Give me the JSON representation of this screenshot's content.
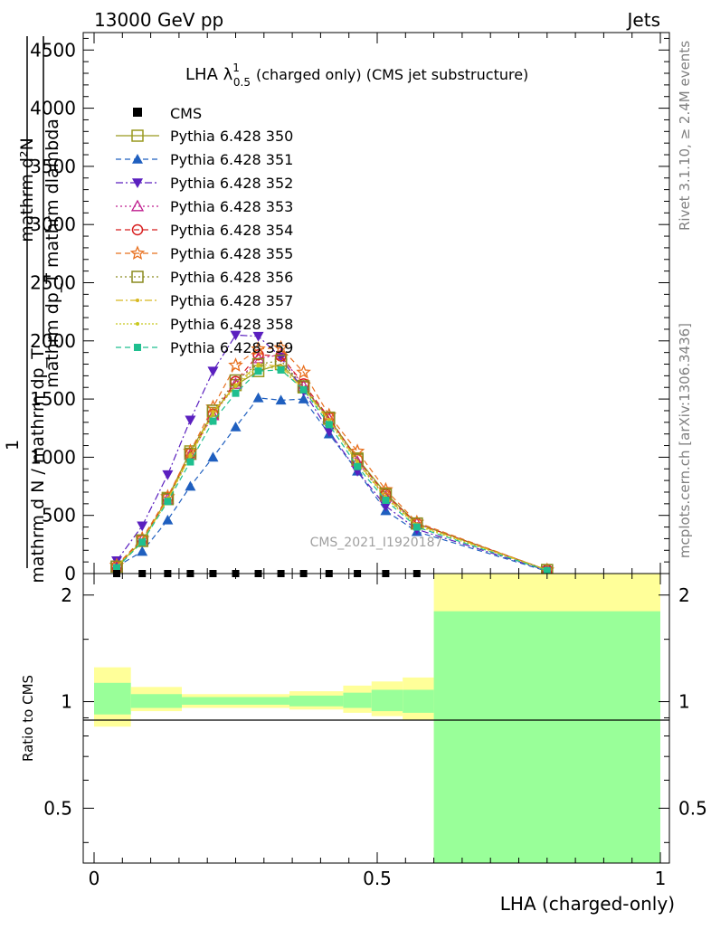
{
  "header": {
    "left": "13000 GeV pp",
    "right": "Jets"
  },
  "side_labels": {
    "rivet": "Rivet 3.1.10, ≥ 2.4M events",
    "mcplots": "mcplots.cern.ch [arXiv:1306.3436]"
  },
  "watermark": "CMS_2021_I1920187",
  "chart_data": [
    {
      "type": "line",
      "title": "LHA λ¹₀.₅ (charged only) (CMS jet substructure)",
      "title_parts": {
        "main": "LHA λ",
        "sup": "1",
        "sub": "0.5",
        "rest": "(charged only) (CMS jet substructure)"
      },
      "ylabel_parts": {
        "num_prefix": "1",
        "frac1_top": "mathrm dN",
        "frac1_bottom": "mathrm dλ",
        "top": "mathrm d",
        "top_sub": "T",
        "top2": "mathrm dp",
        "top2_sub": "T",
        "left1": "mathrm d N / mathrm d p",
        "left2": "mathrm d lambda"
      },
      "ylabel_lines": [
        "mathrm d²N",
        "mathrm dp_T mathrm dlambda",
        "1",
        "mathrm d N / mathrm dp_T"
      ],
      "xlim": [
        0,
        1
      ],
      "ylim": [
        0,
        4650
      ],
      "y_ticks": [
        0,
        500,
        1000,
        1500,
        2000,
        2500,
        3000,
        3500,
        4000,
        4500
      ],
      "legend_position": "top-left",
      "legend": [
        "CMS",
        "Pythia 6.428 350",
        "Pythia 6.428 351",
        "Pythia 6.428 352",
        "Pythia 6.428 353",
        "Pythia 6.428 354",
        "Pythia 6.428 355",
        "Pythia 6.428 356",
        "Pythia 6.428 357",
        "Pythia 6.428 358",
        "Pythia 6.428 359"
      ],
      "x": [
        0.04,
        0.085,
        0.13,
        0.17,
        0.21,
        0.25,
        0.29,
        0.33,
        0.37,
        0.415,
        0.465,
        0.515,
        0.57,
        0.8
      ],
      "cms": {
        "name": "CMS",
        "x": [
          0.04,
          0.085,
          0.13,
          0.17,
          0.21,
          0.25,
          0.29,
          0.33,
          0.37,
          0.415,
          0.465,
          0.515,
          0.57
        ],
        "values": [
          0,
          0,
          0,
          0,
          0,
          0,
          0,
          0,
          0,
          0,
          0,
          0,
          0
        ],
        "color": "#000000"
      },
      "series": [
        {
          "name": "Pythia 6.428 350",
          "color": "#99991f",
          "marker": "square-open",
          "dash": "",
          "values": [
            60,
            280,
            650,
            1050,
            1380,
            1620,
            1740,
            1800,
            1600,
            1330,
            990,
            690,
            430,
            30
          ]
        },
        {
          "name": "Pythia 6.428 351",
          "color": "#1f5fbf",
          "marker": "triangle-up",
          "dash": "6,4",
          "values": [
            60,
            190,
            460,
            750,
            1000,
            1260,
            1510,
            1490,
            1500,
            1200,
            880,
            540,
            360,
            20
          ]
        },
        {
          "name": "Pythia 6.428 352",
          "color": "#5a1fbf",
          "marker": "triangle-down",
          "dash": "8,3,2,3",
          "values": [
            110,
            410,
            850,
            1320,
            1740,
            2050,
            2040,
            1860,
            1570,
            1220,
            880,
            580,
            380,
            25
          ]
        },
        {
          "name": "Pythia 6.428 353",
          "color": "#bf1f8f",
          "marker": "triangle-open",
          "dash": "2,3",
          "values": [
            60,
            290,
            640,
            1020,
            1360,
            1630,
            1850,
            1880,
            1610,
            1330,
            960,
            660,
            430,
            30
          ]
        },
        {
          "name": "Pythia 6.428 354",
          "color": "#d81f1f",
          "marker": "circle-open",
          "dash": "6,4",
          "values": [
            60,
            290,
            650,
            1030,
            1370,
            1650,
            1880,
            1870,
            1630,
            1340,
            980,
            680,
            430,
            30
          ]
        },
        {
          "name": "Pythia 6.428 355",
          "color": "#e8701f",
          "marker": "star",
          "dash": "6,4",
          "values": [
            70,
            300,
            660,
            1050,
            1430,
            1790,
            1930,
            1940,
            1730,
            1360,
            1050,
            720,
            440,
            30
          ]
        },
        {
          "name": "Pythia 6.428 356",
          "color": "#8a8a1f",
          "marker": "square-open",
          "dash": "2,3",
          "values": [
            60,
            285,
            640,
            1030,
            1400,
            1660,
            1800,
            1830,
            1610,
            1340,
            980,
            680,
            430,
            30
          ]
        },
        {
          "name": "Pythia 6.428 357",
          "color": "#d8b81f",
          "marker": "dot",
          "dash": "8,3,2,3",
          "values": [
            60,
            280,
            640,
            1020,
            1390,
            1620,
            1800,
            1780,
            1590,
            1320,
            960,
            660,
            420,
            30
          ]
        },
        {
          "name": "Pythia 6.428 358",
          "color": "#c8c81f",
          "marker": "dot",
          "dash": "2,2",
          "values": [
            60,
            275,
            630,
            1010,
            1370,
            1610,
            1780,
            1760,
            1580,
            1310,
            950,
            650,
            410,
            30
          ]
        },
        {
          "name": "Pythia 6.428 359",
          "color": "#1fbf8f",
          "marker": "square",
          "dash": "6,4",
          "values": [
            50,
            270,
            620,
            960,
            1310,
            1550,
            1740,
            1750,
            1580,
            1280,
            920,
            630,
            400,
            25
          ]
        }
      ]
    },
    {
      "type": "area",
      "ylabel": "Ratio to CMS",
      "xlabel": "LHA (charged-only)",
      "xlim": [
        0,
        1
      ],
      "ylim": [
        0.35,
        2.3
      ],
      "y_scale": "log",
      "y_ticks": [
        0.5,
        1,
        2
      ],
      "x_ticks": [
        0,
        0.5,
        1
      ],
      "bins": [
        {
          "x0": 0.0,
          "x1": 0.065,
          "stat_lo": 0.92,
          "stat_hi": 1.13,
          "tot_lo": 0.85,
          "tot_hi": 1.25
        },
        {
          "x0": 0.065,
          "x1": 0.155,
          "stat_lo": 0.96,
          "stat_hi": 1.05,
          "tot_lo": 0.94,
          "tot_hi": 1.1
        },
        {
          "x0": 0.155,
          "x1": 0.345,
          "stat_lo": 0.98,
          "stat_hi": 1.03,
          "tot_lo": 0.96,
          "tot_hi": 1.05
        },
        {
          "x0": 0.345,
          "x1": 0.44,
          "stat_lo": 0.97,
          "stat_hi": 1.04,
          "tot_lo": 0.95,
          "tot_hi": 1.07
        },
        {
          "x0": 0.44,
          "x1": 0.49,
          "stat_lo": 0.96,
          "stat_hi": 1.06,
          "tot_lo": 0.93,
          "tot_hi": 1.11
        },
        {
          "x0": 0.49,
          "x1": 0.545,
          "stat_lo": 0.94,
          "stat_hi": 1.08,
          "tot_lo": 0.91,
          "tot_hi": 1.14
        },
        {
          "x0": 0.545,
          "x1": 0.6,
          "stat_lo": 0.93,
          "stat_hi": 1.08,
          "tot_lo": 0.89,
          "tot_hi": 1.17
        },
        {
          "x0": 0.6,
          "x1": 1.0,
          "stat_lo": 0.35,
          "stat_hi": 1.8,
          "tot_lo": 0.35,
          "tot_hi": 2.3
        }
      ],
      "colors": {
        "stat": "#99ff99",
        "total": "#ffff99",
        "ref_line": "#000000"
      }
    }
  ]
}
